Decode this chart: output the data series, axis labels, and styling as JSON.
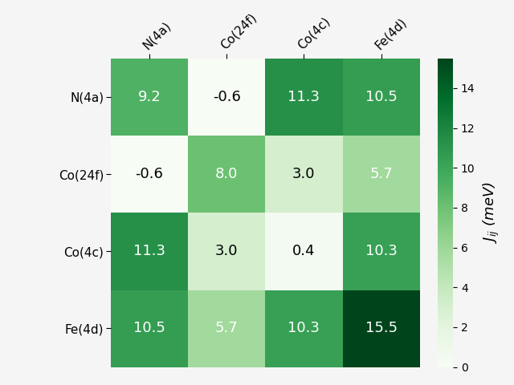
{
  "labels": [
    "N(4a)",
    "Co(24f)",
    "Co(4c)",
    "Fe(4d)"
  ],
  "matrix": [
    [
      9.2,
      -0.6,
      11.3,
      10.5
    ],
    [
      -0.6,
      8.0,
      3.0,
      5.7
    ],
    [
      11.3,
      3.0,
      0.4,
      10.3
    ],
    [
      10.5,
      5.7,
      10.3,
      15.5
    ]
  ],
  "vmin": 0,
  "vmax": 15.5,
  "cbar_label": "$J_{ij}$ (meV)",
  "colormap": "Greens",
  "cbar_ticks": [
    0,
    2,
    4,
    6,
    8,
    10,
    12,
    14
  ],
  "text_threshold": 5.5,
  "text_color_above": "white",
  "text_color_below": "black",
  "fontsize_annot": 13,
  "fontsize_tick": 11,
  "fontsize_cbar": 13,
  "figsize": [
    6.4,
    4.8
  ],
  "dpi": 100,
  "bg_color": "#f5f5f5"
}
